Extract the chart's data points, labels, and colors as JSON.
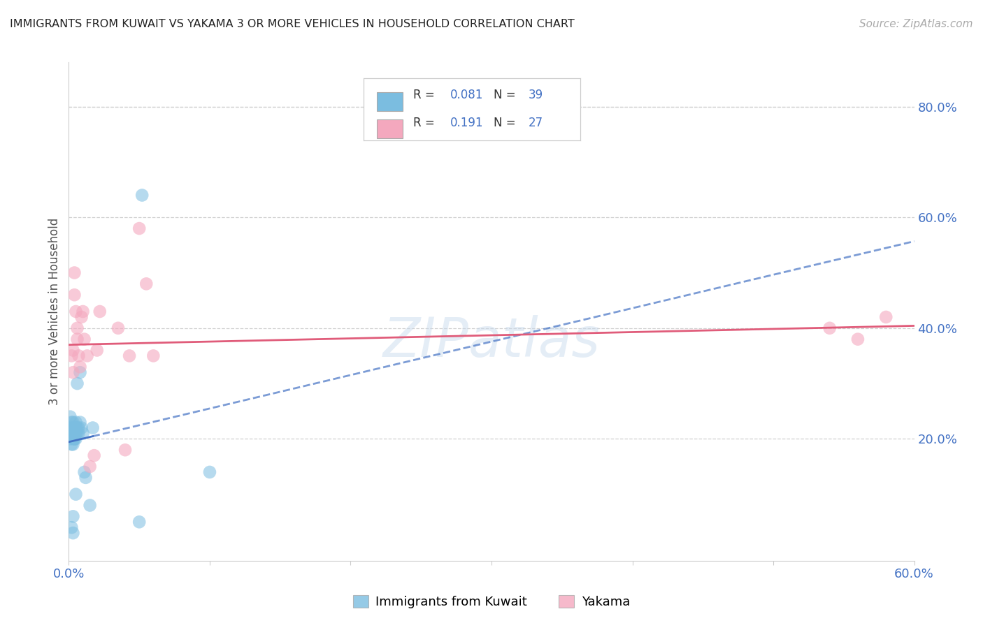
{
  "title": "IMMIGRANTS FROM KUWAIT VS YAKAMA 3 OR MORE VEHICLES IN HOUSEHOLD CORRELATION CHART",
  "source": "Source: ZipAtlas.com",
  "ylabel": "3 or more Vehicles in Household",
  "watermark": "ZIPatlas",
  "xlim": [
    0.0,
    0.6
  ],
  "ylim": [
    -0.02,
    0.88
  ],
  "xtick_vals": [
    0.0,
    0.1,
    0.2,
    0.3,
    0.4,
    0.5,
    0.6
  ],
  "xticklabels": [
    "0.0%",
    "",
    "",
    "",
    "",
    "",
    "60.0%"
  ],
  "yticks_right": [
    0.2,
    0.4,
    0.6,
    0.8
  ],
  "ytick_right_labels": [
    "20.0%",
    "40.0%",
    "60.0%",
    "80.0%"
  ],
  "legend_line1_r": "R = 0.081",
  "legend_line1_n": "N = 39",
  "legend_line2_r": "R =  0.191",
  "legend_line2_n": "N = 27",
  "legend_label1": "Immigrants from Kuwait",
  "legend_label2": "Yakama",
  "blue_scatter_color": "#7BBDE0",
  "pink_scatter_color": "#F4A8BE",
  "blue_line_color": "#4472C4",
  "pink_line_color": "#E05C7A",
  "right_axis_color": "#4472C4",
  "grid_color": "#d0d0d0",
  "bg_color": "#ffffff",
  "kuwait_x": [
    0.001,
    0.001,
    0.001,
    0.002,
    0.002,
    0.002,
    0.003,
    0.003,
    0.003,
    0.003,
    0.003,
    0.004,
    0.004,
    0.004,
    0.004,
    0.004,
    0.005,
    0.005,
    0.005,
    0.005,
    0.006,
    0.006,
    0.006,
    0.007,
    0.007,
    0.008,
    0.008,
    0.009,
    0.01,
    0.011,
    0.012,
    0.015,
    0.017,
    0.05,
    0.1,
    0.002,
    0.003,
    0.003,
    0.005
  ],
  "kuwait_y": [
    0.22,
    0.24,
    0.2,
    0.23,
    0.21,
    0.19,
    0.22,
    0.21,
    0.2,
    0.19,
    0.23,
    0.22,
    0.21,
    0.2,
    0.22,
    0.2,
    0.22,
    0.23,
    0.2,
    0.21,
    0.21,
    0.22,
    0.3,
    0.22,
    0.21,
    0.23,
    0.32,
    0.22,
    0.21,
    0.14,
    0.13,
    0.08,
    0.22,
    0.05,
    0.14,
    0.04,
    0.06,
    0.03,
    0.1
  ],
  "kuwait_outlier_x": [
    0.052
  ],
  "kuwait_outlier_y": [
    0.64
  ],
  "yakama_x": [
    0.002,
    0.003,
    0.004,
    0.004,
    0.005,
    0.006,
    0.006,
    0.007,
    0.008,
    0.009,
    0.01,
    0.011,
    0.013,
    0.015,
    0.018,
    0.02,
    0.022,
    0.04,
    0.043,
    0.05,
    0.055,
    0.06,
    0.035,
    0.54,
    0.56,
    0.58,
    0.003
  ],
  "yakama_y": [
    0.35,
    0.36,
    0.5,
    0.46,
    0.43,
    0.4,
    0.38,
    0.35,
    0.33,
    0.42,
    0.43,
    0.38,
    0.35,
    0.15,
    0.17,
    0.36,
    0.43,
    0.18,
    0.35,
    0.58,
    0.48,
    0.35,
    0.4,
    0.4,
    0.38,
    0.42,
    0.32
  ]
}
